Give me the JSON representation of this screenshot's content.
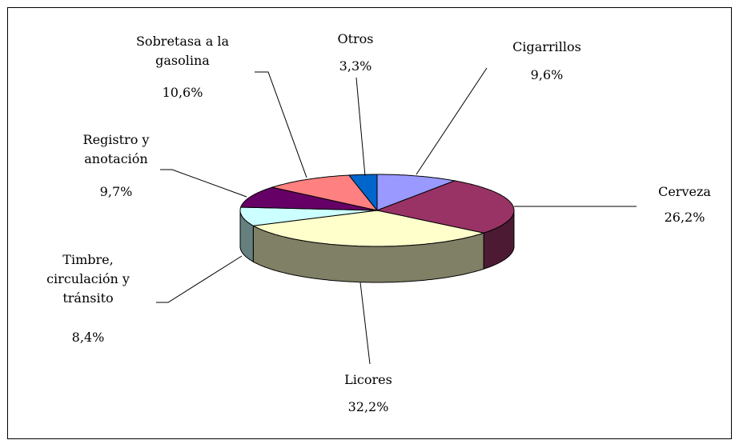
{
  "chart_data": {
    "type": "pie3d",
    "categories": [
      "Cigarrillos",
      "Cerveza",
      "Licores",
      "Timbre, circulación y tránsito",
      "Registro y anotación",
      "Sobretasa a la gasolina",
      "Otros"
    ],
    "values": [
      9.6,
      26.2,
      32.2,
      8.4,
      9.7,
      10.6,
      3.3
    ],
    "value_labels": [
      "9,6%",
      "26,2%",
      "32,2%",
      "8,4%",
      "9,7%",
      "10,6%",
      "3,3%"
    ],
    "colors": [
      "#9999ff",
      "#993366",
      "#ffffcc",
      "#ccffff",
      "#660066",
      "#ff8080",
      "#0066cc"
    ]
  }
}
